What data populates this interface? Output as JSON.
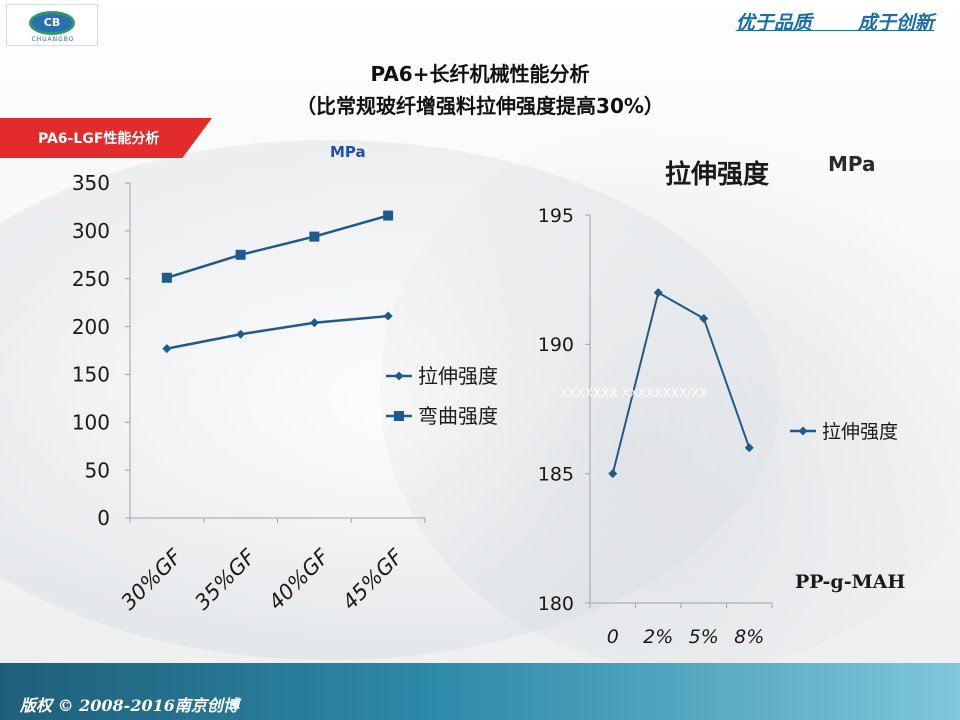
{
  "header": {
    "logo_text": "CB",
    "logo_subtext": "CHUANGBO",
    "slogan": "优于品质       成于创新"
  },
  "title": {
    "line1": "PA6+长纤机械性能分析",
    "line2": "（比常规玻纤增强料拉伸强度提高30%）"
  },
  "section_tag": "PA6-LGF性能分析",
  "footer": {
    "copyright": "版权 © 2008-2016南京创博"
  },
  "colors": {
    "series": "#1f5a8c",
    "axis": "#9aa4ad",
    "section_tag": "#e32b2b",
    "footer": "#2d8aa8",
    "unit_left": "#1f4fb0"
  },
  "chart_data": [
    {
      "type": "line",
      "unit": "MPa",
      "categories": [
        "30%GF",
        "35%GF",
        "40%GF",
        "45%GF"
      ],
      "series": [
        {
          "name": "拉伸强度",
          "marker": "diamond",
          "values": [
            177,
            192,
            204,
            211
          ]
        },
        {
          "name": "弯曲强度",
          "marker": "square",
          "values": [
            251,
            275,
            294,
            316
          ]
        }
      ],
      "ylim": [
        0,
        350
      ],
      "yticks": [
        "0",
        "50",
        "100",
        "150",
        "200",
        "250",
        "300",
        "350"
      ],
      "legend": "right",
      "grid": false
    },
    {
      "type": "line",
      "title": "拉伸强度",
      "unit": "MPa",
      "categories": [
        "0",
        "2%",
        "5%",
        "8%"
      ],
      "series": [
        {
          "name": "拉伸强度",
          "marker": "diamond",
          "values": [
            185,
            192,
            191,
            186
          ]
        }
      ],
      "ylim": [
        180,
        195
      ],
      "yticks": [
        "180",
        "185",
        "190",
        "195"
      ],
      "xlabel": "PP-g-MAH",
      "annotation": "XXXXXXX XXXXXXXX/XX",
      "legend": "right",
      "grid": false
    }
  ]
}
